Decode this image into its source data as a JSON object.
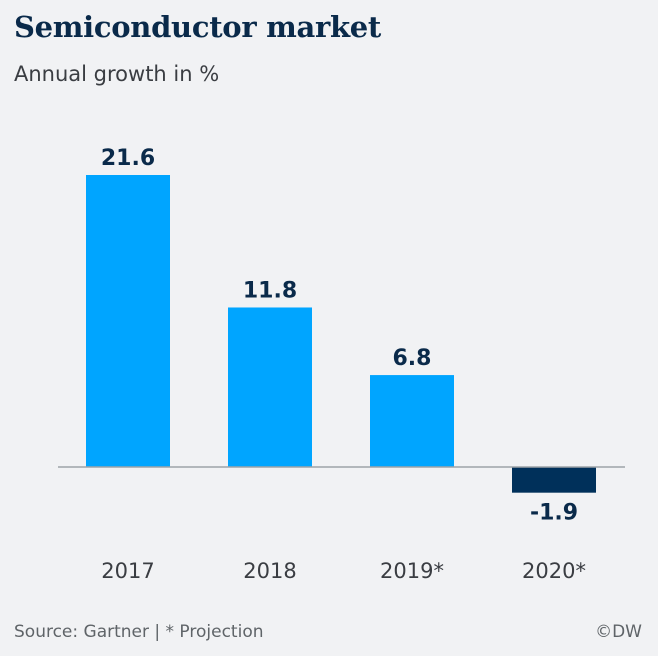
{
  "header": {
    "title": "Semiconductor market",
    "subtitle": "Annual growth in %"
  },
  "footer": {
    "source": "Source: Gartner | * Projection",
    "credit": "©DW"
  },
  "colors": {
    "positive_bar": "#00a5ff",
    "negative_bar": "#00305a",
    "label_text": "#0a2a4a",
    "baseline": "#9ea3a8"
  },
  "chart_data": {
    "type": "bar",
    "title": "Semiconductor market",
    "subtitle": "Annual growth in %",
    "categories": [
      "2017",
      "2018",
      "2019*",
      "2020*"
    ],
    "values": [
      21.6,
      11.8,
      6.8,
      -1.9
    ],
    "value_labels": [
      "21.6",
      "11.8",
      "6.8",
      "-1.9"
    ],
    "xlabel": "",
    "ylabel": "",
    "ylim": [
      -1.9,
      21.6
    ],
    "grid": false,
    "legend": "none"
  }
}
